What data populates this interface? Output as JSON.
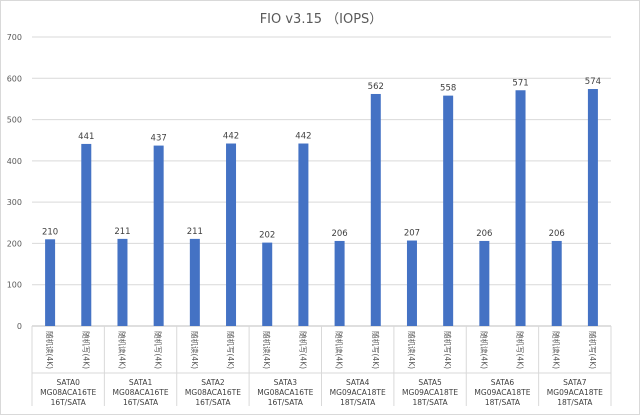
{
  "chart_data": {
    "type": "bar",
    "title": "FIO v3.15 （IOPS）",
    "xlabel": "",
    "ylabel": "",
    "ylim": [
      0,
      700
    ],
    "yticks": [
      0,
      100,
      200,
      300,
      400,
      500,
      600,
      700
    ],
    "grid": true,
    "legend": "none",
    "bar_color": "#4472c4",
    "groups": [
      {
        "lines": [
          "SATA0",
          "MG08ACA16TE",
          "16T/SATA"
        ],
        "bars": [
          {
            "label": "随机读(4K)",
            "value": 210
          },
          {
            "label": "随机写(4K)",
            "value": 441
          }
        ]
      },
      {
        "lines": [
          "SATA1",
          "MG08ACA16TE",
          "16T/SATA"
        ],
        "bars": [
          {
            "label": "随机读(4K)",
            "value": 211
          },
          {
            "label": "随机写(4K)",
            "value": 437
          }
        ]
      },
      {
        "lines": [
          "SATA2",
          "MG08ACA16TE",
          "16T/SATA"
        ],
        "bars": [
          {
            "label": "随机读(4K)",
            "value": 211
          },
          {
            "label": "随机写(4K)",
            "value": 442
          }
        ]
      },
      {
        "lines": [
          "SATA3",
          "MG08ACA16TE",
          "16T/SATA"
        ],
        "bars": [
          {
            "label": "随机读(4K)",
            "value": 202
          },
          {
            "label": "随机写(4K)",
            "value": 442
          }
        ]
      },
      {
        "lines": [
          "SATA4",
          "MG09ACA18TE",
          "18T/SATA"
        ],
        "bars": [
          {
            "label": "随机读(4K)",
            "value": 206
          },
          {
            "label": "随机写(4K)",
            "value": 562
          }
        ]
      },
      {
        "lines": [
          "SATA5",
          "MG09ACA18TE",
          "18T/SATA"
        ],
        "bars": [
          {
            "label": "随机读(4K)",
            "value": 207
          },
          {
            "label": "随机写(4K)",
            "value": 558
          }
        ]
      },
      {
        "lines": [
          "SATA6",
          "MG09ACA18TE",
          "18T/SATA"
        ],
        "bars": [
          {
            "label": "随机读(4K)",
            "value": 206
          },
          {
            "label": "随机写(4K)",
            "value": 571
          }
        ]
      },
      {
        "lines": [
          "SATA7",
          "MG09ACA18TE",
          "18T/SATA"
        ],
        "bars": [
          {
            "label": "随机读(4K)",
            "value": 206
          },
          {
            "label": "随机写(4K)",
            "value": 574
          }
        ]
      }
    ]
  }
}
